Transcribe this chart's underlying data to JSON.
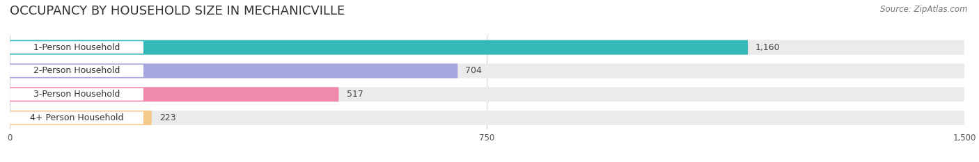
{
  "title": "OCCUPANCY BY HOUSEHOLD SIZE IN MECHANICVILLE",
  "source": "Source: ZipAtlas.com",
  "categories": [
    "1-Person Household",
    "2-Person Household",
    "3-Person Household",
    "4+ Person Household"
  ],
  "values": [
    1160,
    704,
    517,
    223
  ],
  "bar_colors": [
    "#34b8b8",
    "#a8a8e0",
    "#f08aaa",
    "#f5c98a"
  ],
  "bar_bg_color": "#ebebeb",
  "xlim": [
    0,
    1500
  ],
  "xticks": [
    0,
    750,
    1500
  ],
  "title_fontsize": 13,
  "source_fontsize": 8.5,
  "label_fontsize": 9,
  "value_fontsize": 9,
  "bar_height": 0.62,
  "background_color": "#ffffff",
  "fig_width": 14.06,
  "fig_height": 2.33,
  "dpi": 100
}
